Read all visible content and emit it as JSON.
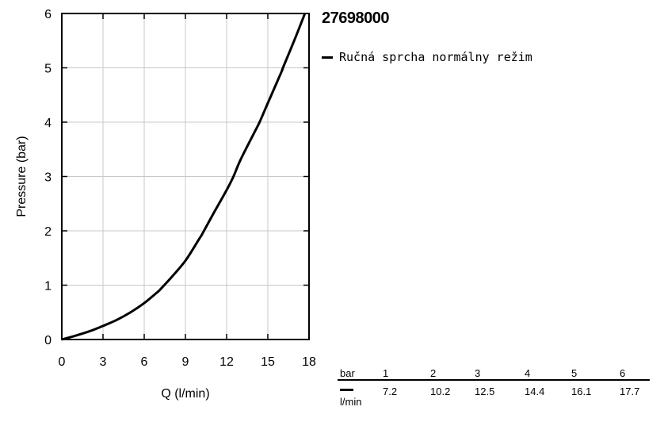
{
  "model": "27698000",
  "legend_label": "Ručná sprcha normálny režim",
  "chart_data": {
    "type": "line",
    "title": "27698000",
    "xlabel": "Q (l/min)",
    "ylabel": "Pressure (bar)",
    "xlim": [
      0,
      18
    ],
    "ylim": [
      0,
      6
    ],
    "xticks": [
      0,
      3,
      6,
      9,
      12,
      15,
      18
    ],
    "yticks": [
      0,
      1,
      2,
      3,
      4,
      5,
      6
    ],
    "grid": true,
    "legend_position": "right",
    "series": [
      {
        "name": "Ručná sprcha normálny režim",
        "x": [
          0,
          1,
          2,
          3,
          4,
          5,
          6,
          7,
          7.2,
          8,
          9,
          10,
          10.2,
          11,
          12,
          12.5,
          13,
          14,
          14.4,
          15,
          16,
          16.1,
          17,
          17.7
        ],
        "y": [
          0,
          0.07,
          0.15,
          0.25,
          0.36,
          0.5,
          0.67,
          0.88,
          0.93,
          1.15,
          1.45,
          1.85,
          1.93,
          2.3,
          2.75,
          3.0,
          3.3,
          3.8,
          4.0,
          4.35,
          4.93,
          5.0,
          5.55,
          6.0
        ],
        "color": "#000000"
      }
    ]
  },
  "table": {
    "header_label": "bar",
    "row_label": "l/min",
    "pressures": [
      "1",
      "2",
      "3",
      "4",
      "5",
      "6"
    ],
    "flows": [
      "7.2",
      "10.2",
      "12.5",
      "14.4",
      "16.1",
      "17.7"
    ]
  }
}
